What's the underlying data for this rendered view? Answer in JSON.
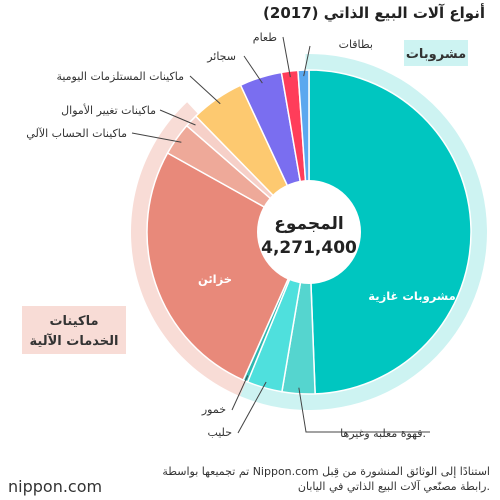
{
  "chart_data": {
    "type": "pie",
    "title": "أنواع آلات البيع الذاتي (2017)",
    "center_label": "المجموع",
    "center_value": "4,271,400",
    "total": 4271400,
    "slices": [
      {
        "label": "مشروبات غازية",
        "value": 2110000,
        "color": "#00c6c0",
        "group": 0
      },
      {
        "label": "قهوة معلبة وغيرها.",
        "value": 140000,
        "color": "#55d5cf",
        "group": 0
      },
      {
        "label": "حليب",
        "value": 150000,
        "color": "#4fe0dd",
        "group": 0
      },
      {
        "label": "خمور",
        "value": 20000,
        "color": "#2fb8b0",
        "group": 0
      },
      {
        "label": "خزائن",
        "value": 1130000,
        "color": "#e8897a",
        "group": 1
      },
      {
        "label": "ماكينات الحساب الآلي",
        "value": 140000,
        "color": "#eea999",
        "group": 1
      },
      {
        "label": "ماكينات تغيير الأموال",
        "value": 55000,
        "color": "#f6d0c8",
        "group": 1
      },
      {
        "label": "ماكينات المستلزمات اليومية",
        "value": 230000,
        "color": "#fdc970",
        "group": 2
      },
      {
        "label": "سجائر",
        "value": 180000,
        "color": "#7a6ef0",
        "group": 2
      },
      {
        "label": "طعام",
        "value": 70000,
        "color": "#ff3d5a",
        "group": 2
      },
      {
        "label": "بطاقات",
        "value": 46400,
        "color": "#5aa8ef",
        "group": 2
      }
    ],
    "groups": [
      {
        "label": "مشروبات",
        "ring_color": "#cdf3f2",
        "box_color": "#cdf3f2"
      },
      {
        "label": "ماكينات الخدمات الآلية",
        "ring_color": "#f8dcd6",
        "box_color": "#f8dcd6"
      }
    ]
  },
  "source_note_line1": "تم تجميعها بواسطة Nippon.com استنادًا إلى الوثائق المنشورة من قِبل",
  "source_note_line2": "رابطة مصنّعي آلات البيع الذاتي في اليابان.",
  "logo": "nippon.com"
}
